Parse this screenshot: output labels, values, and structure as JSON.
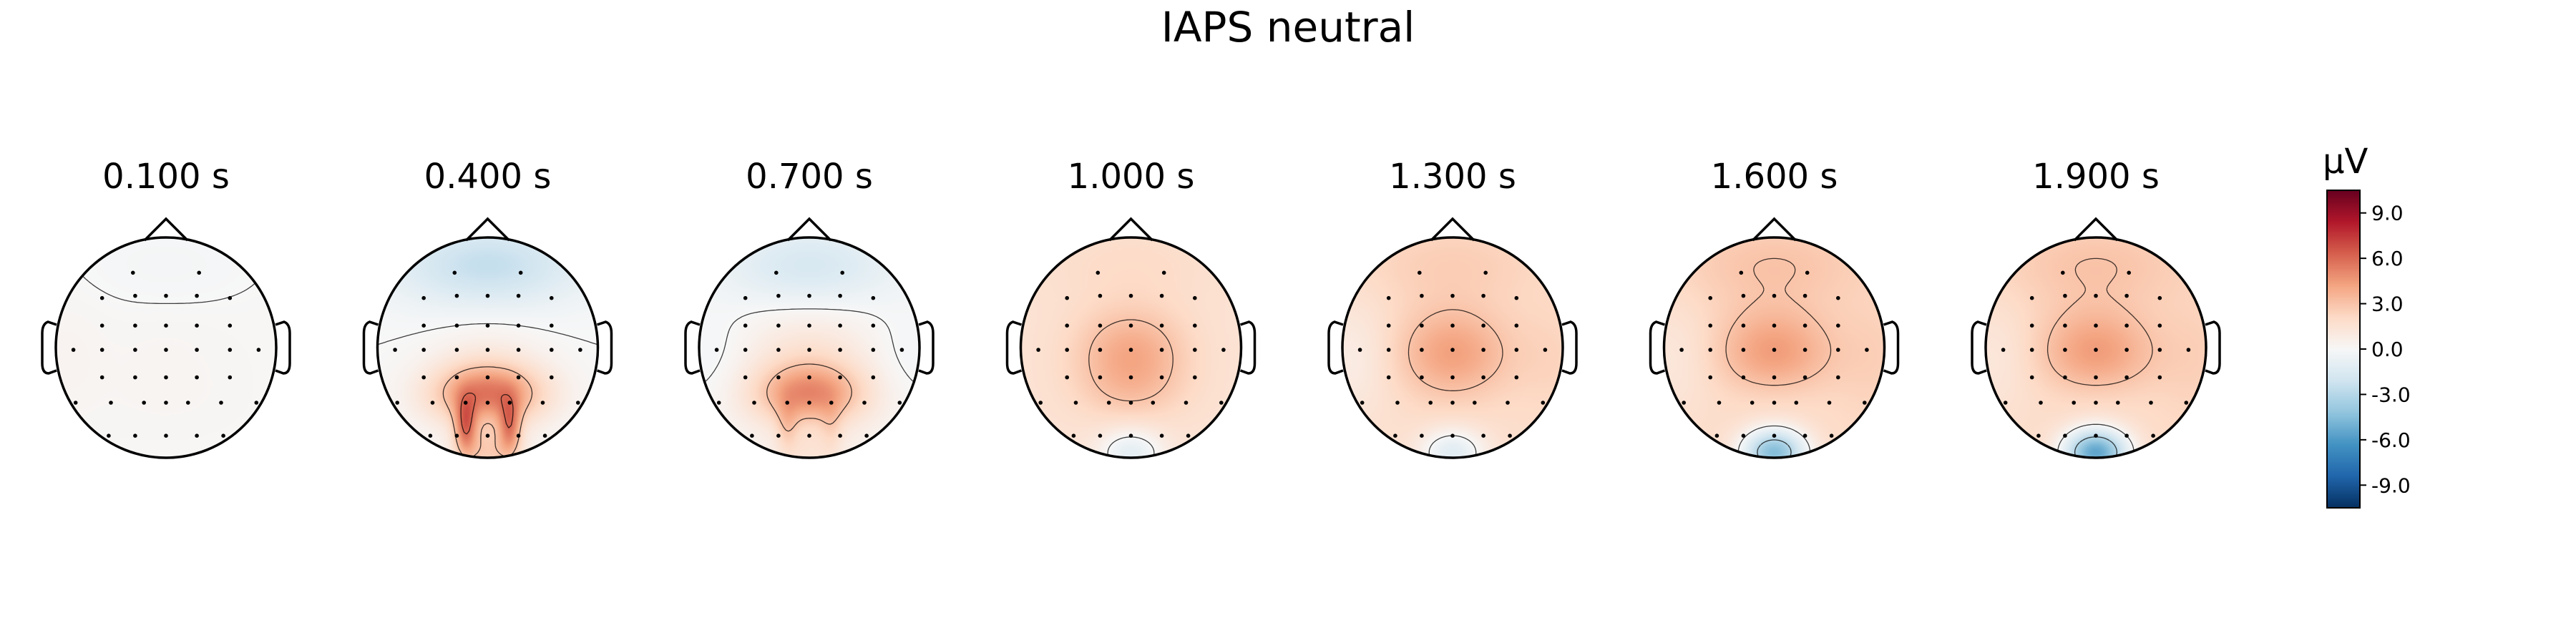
{
  "chart_data": {
    "type": "heatmap",
    "title": "IAPS neutral",
    "colorbar": {
      "label": "μV",
      "vmin": -10.5,
      "vmax": 10.5,
      "ticks": [
        9,
        6,
        3,
        0,
        -3,
        -6,
        -9
      ],
      "tick_labels": [
        "9.0",
        "6.0",
        "3.0",
        "0.0",
        "-3.0",
        "-6.0",
        "-9.0"
      ],
      "colormap": "RdBu_r"
    },
    "contour_levels": [
      -6,
      -3,
      0,
      3,
      6
    ],
    "topomaps": [
      {
        "time_label": "0.100 s",
        "time": 0.1,
        "components": {
          "base": 0.1,
          "frontal": -0.3,
          "left": 0.2,
          "right": 0.0,
          "central": 0.1,
          "posterior": 0.1,
          "occipital": 0.0,
          "pl": 0.0,
          "pr": 0.0
        }
      },
      {
        "time_label": "0.400 s",
        "time": 0.4,
        "components": {
          "base": 0.0,
          "frontal": -2.5,
          "left": 0.0,
          "right": 0.0,
          "central": 0.5,
          "posterior": 5.5,
          "occipital": 2.5,
          "pl": 4.5,
          "pr": 4.0
        }
      },
      {
        "time_label": "0.700 s",
        "time": 0.7,
        "components": {
          "base": 0.3,
          "frontal": -2.0,
          "left": -0.5,
          "right": -0.5,
          "central": 1.0,
          "posterior": 4.5,
          "occipital": 1.0,
          "pl": 1.5,
          "pr": 1.0
        }
      },
      {
        "time_label": "1.000 s",
        "time": 1.0,
        "components": {
          "base": 1.5,
          "frontal": 0.5,
          "left": 0.0,
          "right": 0.0,
          "central": 2.5,
          "posterior": 0.8,
          "occipital": -2.5,
          "pl": 0.0,
          "pr": 0.0
        }
      },
      {
        "time_label": "1.300 s",
        "time": 1.3,
        "components": {
          "base": 1.8,
          "frontal": 0.8,
          "left": -1.0,
          "right": 0.5,
          "central": 2.5,
          "posterior": 0.0,
          "occipital": -3.0,
          "pl": 0.0,
          "pr": 0.0
        }
      },
      {
        "time_label": "1.600 s",
        "time": 1.6,
        "components": {
          "base": 2.0,
          "frontal": 1.0,
          "left": -0.8,
          "right": 0.5,
          "central": 2.5,
          "posterior": -0.5,
          "occipital": -6.5,
          "pl": 0.0,
          "pr": 0.0
        }
      },
      {
        "time_label": "1.900 s",
        "time": 1.9,
        "components": {
          "base": 2.0,
          "frontal": 1.0,
          "left": -0.8,
          "right": 0.5,
          "central": 2.5,
          "posterior": -0.5,
          "occipital": -7.5,
          "pl": 0.0,
          "pr": 0.0
        }
      }
    ],
    "sensors": [
      [
        -0.3,
        -0.68
      ],
      [
        0.3,
        -0.68
      ],
      [
        -0.58,
        -0.45
      ],
      [
        -0.28,
        -0.47
      ],
      [
        0.0,
        -0.47
      ],
      [
        0.28,
        -0.47
      ],
      [
        0.58,
        -0.45
      ],
      [
        -0.58,
        -0.2
      ],
      [
        -0.28,
        -0.2
      ],
      [
        0.0,
        -0.2
      ],
      [
        0.28,
        -0.2
      ],
      [
        0.58,
        -0.2
      ],
      [
        -0.84,
        0.02
      ],
      [
        -0.58,
        0.02
      ],
      [
        -0.28,
        0.02
      ],
      [
        0.0,
        0.02
      ],
      [
        0.28,
        0.02
      ],
      [
        0.58,
        0.02
      ],
      [
        0.84,
        0.02
      ],
      [
        -0.58,
        0.27
      ],
      [
        -0.28,
        0.27
      ],
      [
        0.0,
        0.27
      ],
      [
        0.28,
        0.27
      ],
      [
        0.58,
        0.27
      ],
      [
        -0.82,
        0.5
      ],
      [
        -0.5,
        0.5
      ],
      [
        -0.2,
        0.5
      ],
      [
        0.0,
        0.5
      ],
      [
        0.2,
        0.5
      ],
      [
        0.5,
        0.5
      ],
      [
        0.82,
        0.5
      ],
      [
        -0.52,
        0.8
      ],
      [
        -0.28,
        0.8
      ],
      [
        0.0,
        0.8
      ],
      [
        0.28,
        0.8
      ],
      [
        0.52,
        0.8
      ]
    ]
  }
}
